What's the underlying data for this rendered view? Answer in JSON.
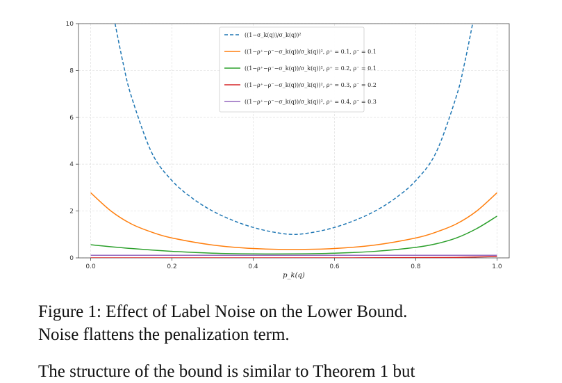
{
  "chart_data": {
    "type": "line",
    "xlabel": "p_k(q)",
    "ylabel": "",
    "xlim": [
      -0.03,
      1.03
    ],
    "ylim": [
      0,
      10
    ],
    "x_ticks": [
      "0.0",
      "0.2",
      "0.4",
      "0.6",
      "0.8",
      "1.0"
    ],
    "y_ticks": [
      "0",
      "2",
      "4",
      "6",
      "8",
      "10"
    ],
    "grid": true,
    "legend_position": "top-center",
    "series": [
      {
        "name": "((1−σ_k(q))/σ_k(q))²",
        "style": "dashed",
        "color": "#1f77b4",
        "x": [
          0.06,
          0.08,
          0.1,
          0.15,
          0.2,
          0.25,
          0.3,
          0.35,
          0.4,
          0.45,
          0.5,
          0.55,
          0.6,
          0.65,
          0.7,
          0.75,
          0.8,
          0.85,
          0.9,
          0.92,
          0.94
        ],
        "values": [
          10.0,
          8.3,
          6.9,
          4.5,
          3.3,
          2.55,
          2.0,
          1.6,
          1.3,
          1.1,
          1.0,
          1.1,
          1.3,
          1.6,
          2.0,
          2.55,
          3.3,
          4.5,
          6.9,
          8.3,
          10.0
        ]
      },
      {
        "name": "((1−ρ⁺−ρ⁻−σ_k(q))/σ_k(q))², ρ⁺ = 0.1, ρ⁻ = 0.1",
        "style": "solid",
        "color": "#ff7f0e",
        "x": [
          0.0,
          0.05,
          0.1,
          0.15,
          0.2,
          0.3,
          0.4,
          0.5,
          0.6,
          0.7,
          0.8,
          0.85,
          0.9,
          0.95,
          1.0
        ],
        "values": [
          2.78,
          2.0,
          1.45,
          1.1,
          0.85,
          0.55,
          0.4,
          0.36,
          0.4,
          0.55,
          0.85,
          1.1,
          1.45,
          2.0,
          2.78
        ]
      },
      {
        "name": "((1−ρ⁺−ρ⁻−σ_k(q))/σ_k(q))², ρ⁺ = 0.2, ρ⁻ = 0.1",
        "style": "solid",
        "color": "#2ca02c",
        "x": [
          0.0,
          0.1,
          0.2,
          0.3,
          0.4,
          0.5,
          0.6,
          0.7,
          0.8,
          0.85,
          0.9,
          0.95,
          1.0
        ],
        "values": [
          0.56,
          0.4,
          0.28,
          0.2,
          0.17,
          0.17,
          0.2,
          0.28,
          0.45,
          0.6,
          0.85,
          1.25,
          1.78
        ]
      },
      {
        "name": "((1−ρ⁺−ρ⁻−σ_k(q))/σ_k(q))², ρ⁺ = 0.3, ρ⁻ = 0.2",
        "style": "solid",
        "color": "#d62728",
        "x": [
          0.0,
          0.2,
          0.4,
          0.6,
          0.8,
          0.9,
          1.0
        ],
        "values": [
          0.0,
          0.0,
          0.0,
          0.0,
          0.01,
          0.02,
          0.06
        ]
      },
      {
        "name": "((1−ρ⁺−ρ⁻−σ_k(q))/σ_k(q))², ρ⁺ = 0.4, ρ⁻ = 0.3",
        "style": "solid",
        "color": "#9467bd",
        "x": [
          0.0,
          0.2,
          0.4,
          0.6,
          0.8,
          1.0
        ],
        "values": [
          0.11,
          0.11,
          0.11,
          0.11,
          0.11,
          0.11
        ]
      }
    ]
  },
  "caption": {
    "line1": "Figure 1:  Effect of Label Noise on the Lower Bound.",
    "line2": "Noise flattens the penalization term."
  },
  "body": {
    "partial_line": "The structure of the bound is similar to Theorem 1 but"
  }
}
